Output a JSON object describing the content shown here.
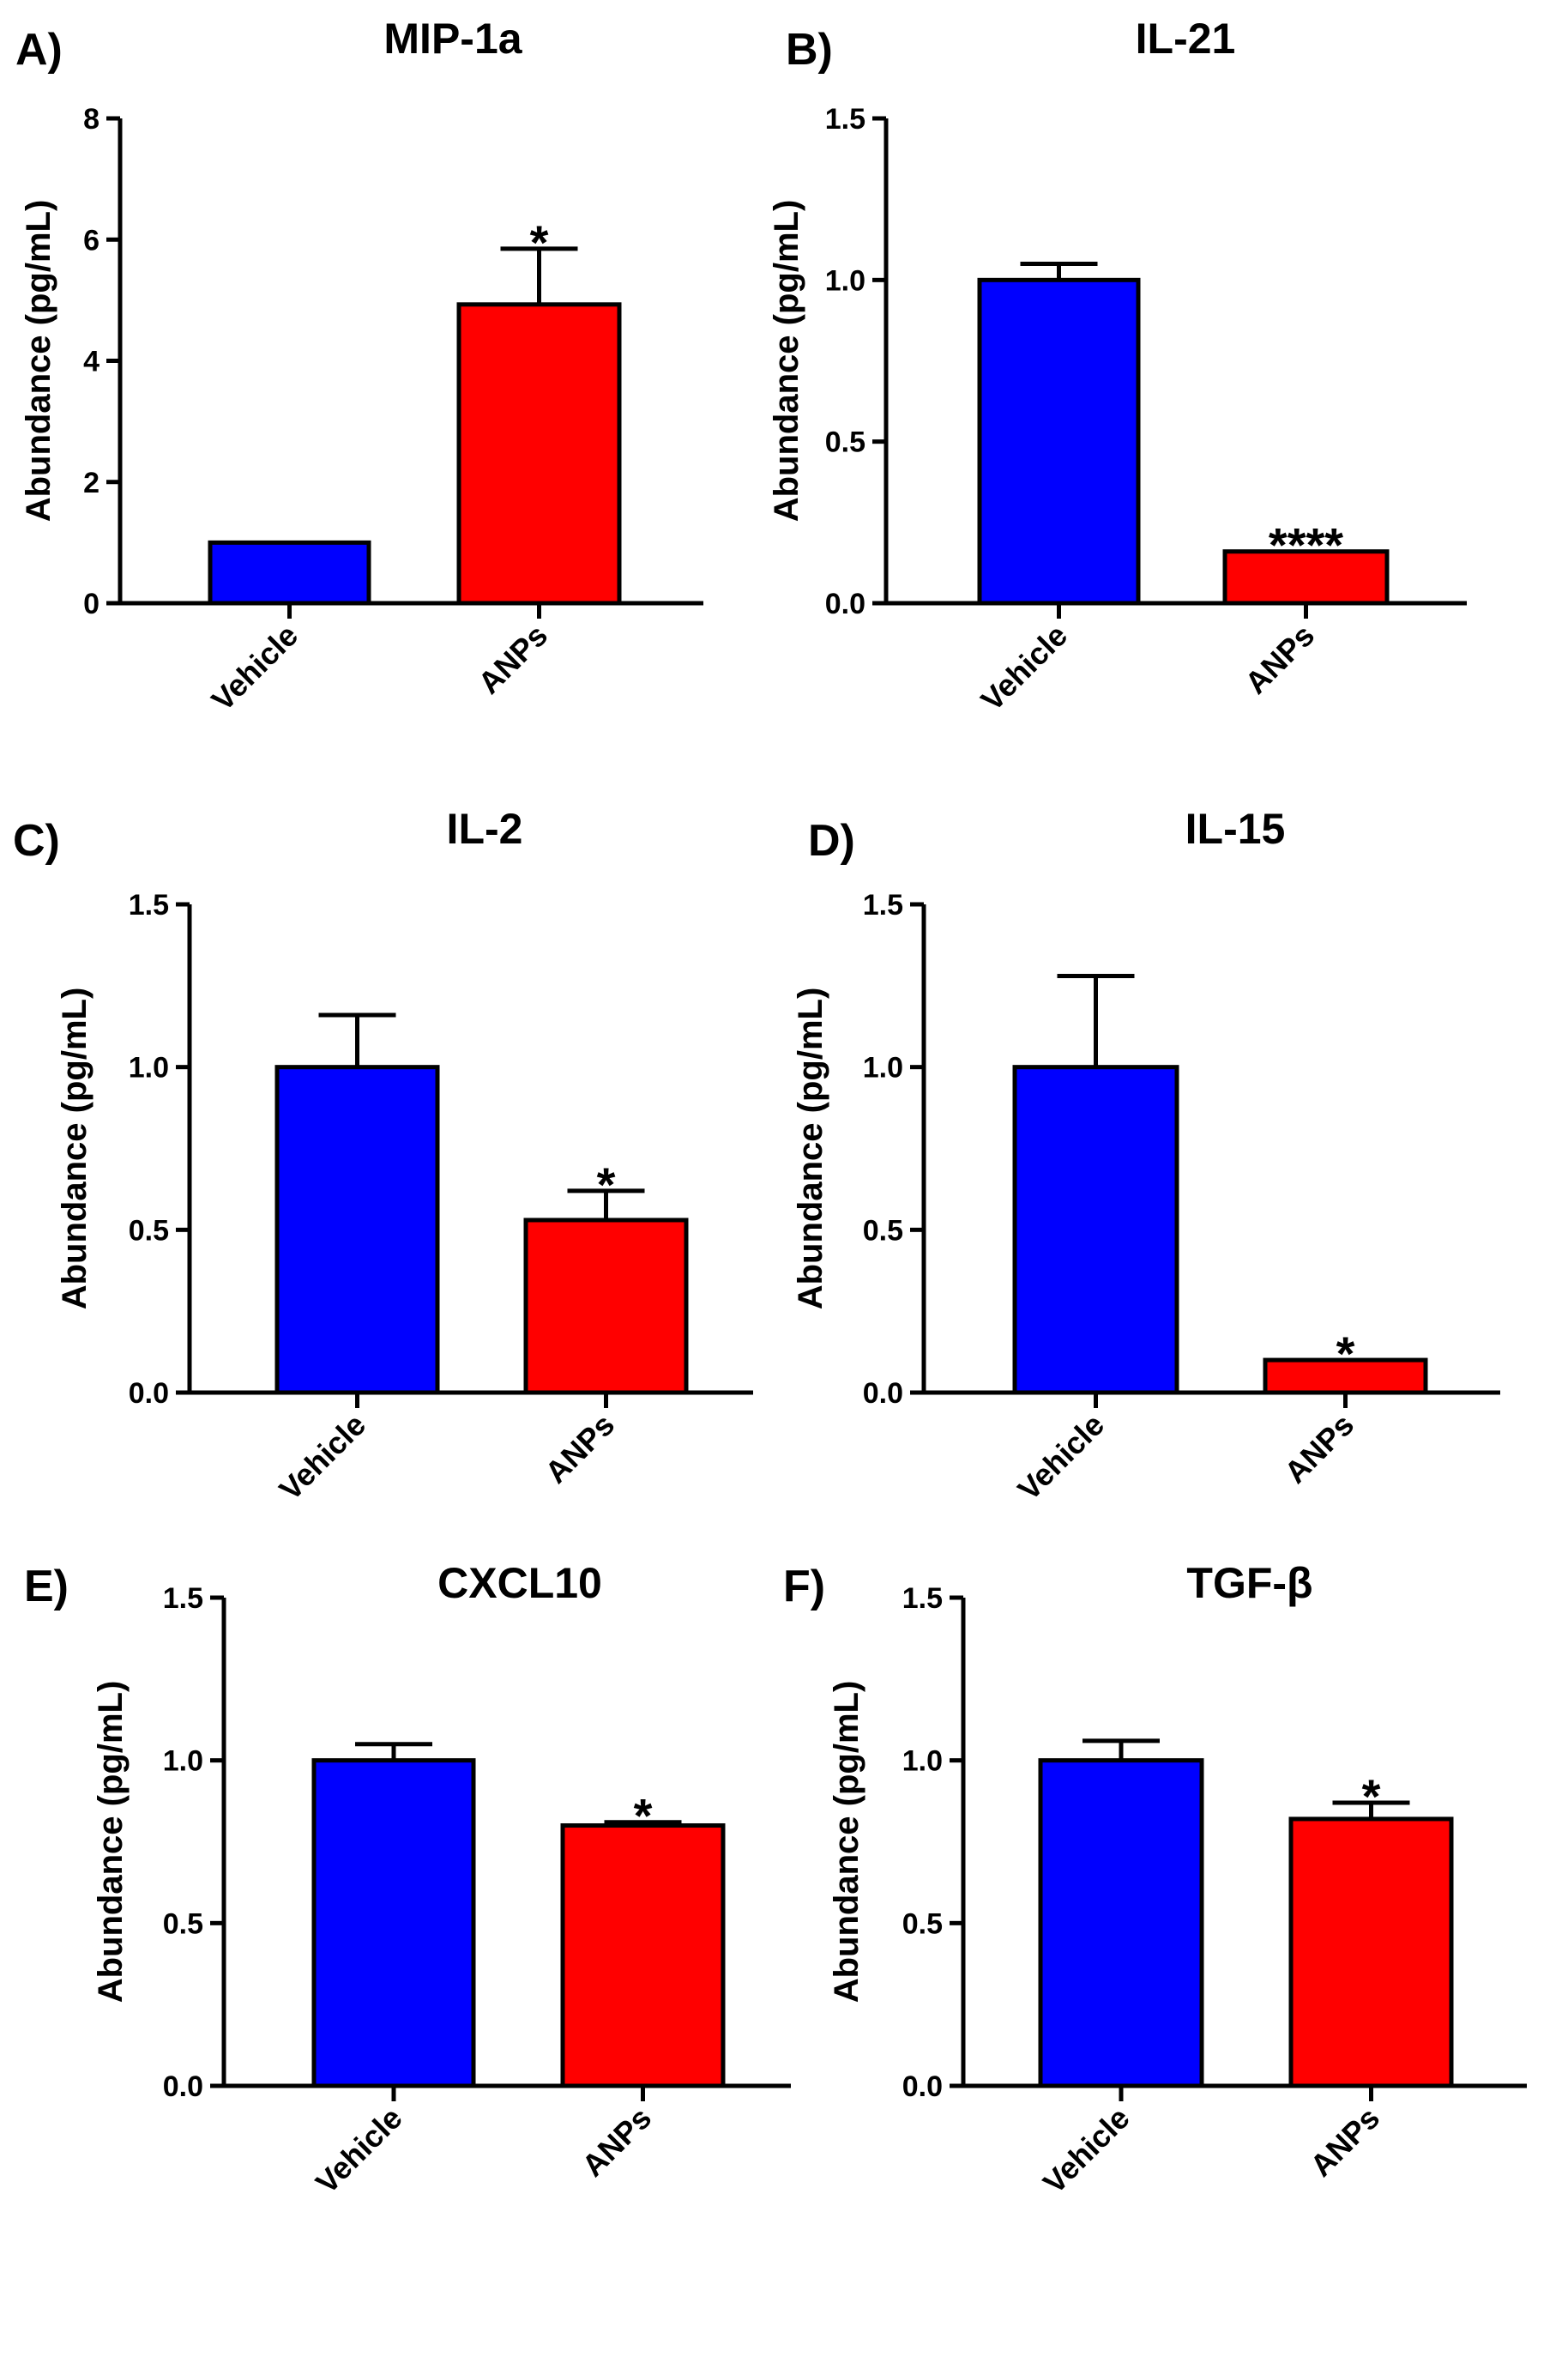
{
  "colors": {
    "vehicle": "#0000ff",
    "anps": "#ff0000",
    "axis": "#000000",
    "background": "#ffffff"
  },
  "chart_data": [
    {
      "panel": "A)",
      "type": "bar",
      "title": "MIP-1a",
      "xlabel": "",
      "ylabel": "Abundance (pg/mL)",
      "categories": [
        "Vehicle",
        "ANPs"
      ],
      "values": [
        1.0,
        4.93
      ],
      "errors": [
        0.0,
        0.92
      ],
      "significance": [
        "",
        "*"
      ],
      "ylim": [
        0,
        8
      ],
      "yticks": [
        0,
        2,
        4,
        6,
        8
      ],
      "ytick_labels": [
        "0",
        "2",
        "4",
        "6",
        "8"
      ]
    },
    {
      "panel": "B)",
      "type": "bar",
      "title": "IL-21",
      "xlabel": "",
      "ylabel": "Abundance (pg/mL)",
      "categories": [
        "Vehicle",
        "ANPs"
      ],
      "values": [
        1.0,
        0.16
      ],
      "errors": [
        0.05,
        0.0
      ],
      "significance": [
        "",
        "****"
      ],
      "ylim": [
        0,
        1.5
      ],
      "yticks": [
        0,
        0.5,
        1.0,
        1.5
      ],
      "ytick_labels": [
        "0.0",
        "0.5",
        "1.0",
        "1.5"
      ]
    },
    {
      "panel": "C)",
      "type": "bar",
      "title": "IL-2",
      "xlabel": "",
      "ylabel": "Abundance (pg/mL)",
      "categories": [
        "Vehicle",
        "ANPs"
      ],
      "values": [
        1.0,
        0.53
      ],
      "errors": [
        0.16,
        0.09
      ],
      "significance": [
        "",
        "*"
      ],
      "ylim": [
        0,
        1.5
      ],
      "yticks": [
        0,
        0.5,
        1.0,
        1.5
      ],
      "ytick_labels": [
        "0.0",
        "0.5",
        "1.0",
        "1.5"
      ]
    },
    {
      "panel": "D)",
      "type": "bar",
      "title": "IL-15",
      "xlabel": "",
      "ylabel": "Abundance (pg/mL)",
      "categories": [
        "Vehicle",
        "ANPs"
      ],
      "values": [
        1.0,
        0.1
      ],
      "errors": [
        0.28,
        0.0
      ],
      "significance": [
        "",
        "*"
      ],
      "ylim": [
        0,
        1.5
      ],
      "yticks": [
        0,
        0.5,
        1.0,
        1.5
      ],
      "ytick_labels": [
        "0.0",
        "0.5",
        "1.0",
        "1.5"
      ]
    },
    {
      "panel": "E)",
      "type": "bar",
      "title": "CXCL10",
      "xlabel": "",
      "ylabel": "Abundance (pg/mL)",
      "categories": [
        "Vehicle",
        "ANPs"
      ],
      "values": [
        1.0,
        0.8
      ],
      "errors": [
        0.05,
        0.01
      ],
      "significance": [
        "",
        "*"
      ],
      "ylim": [
        0,
        1.5
      ],
      "yticks": [
        0,
        0.5,
        1.0,
        1.5
      ],
      "ytick_labels": [
        "0.0",
        "0.5",
        "1.0",
        "1.5"
      ]
    },
    {
      "panel": "F)",
      "type": "bar",
      "title": "TGF-β",
      "xlabel": "",
      "ylabel": "Abundance (pg/mL)",
      "categories": [
        "Vehicle",
        "ANPs"
      ],
      "values": [
        1.0,
        0.82
      ],
      "errors": [
        0.06,
        0.05
      ],
      "significance": [
        "",
        "*"
      ],
      "ylim": [
        0,
        1.5
      ],
      "yticks": [
        0,
        0.5,
        1.0,
        1.5
      ],
      "ytick_labels": [
        "0.0",
        "0.5",
        "1.0",
        "1.5"
      ]
    }
  ]
}
